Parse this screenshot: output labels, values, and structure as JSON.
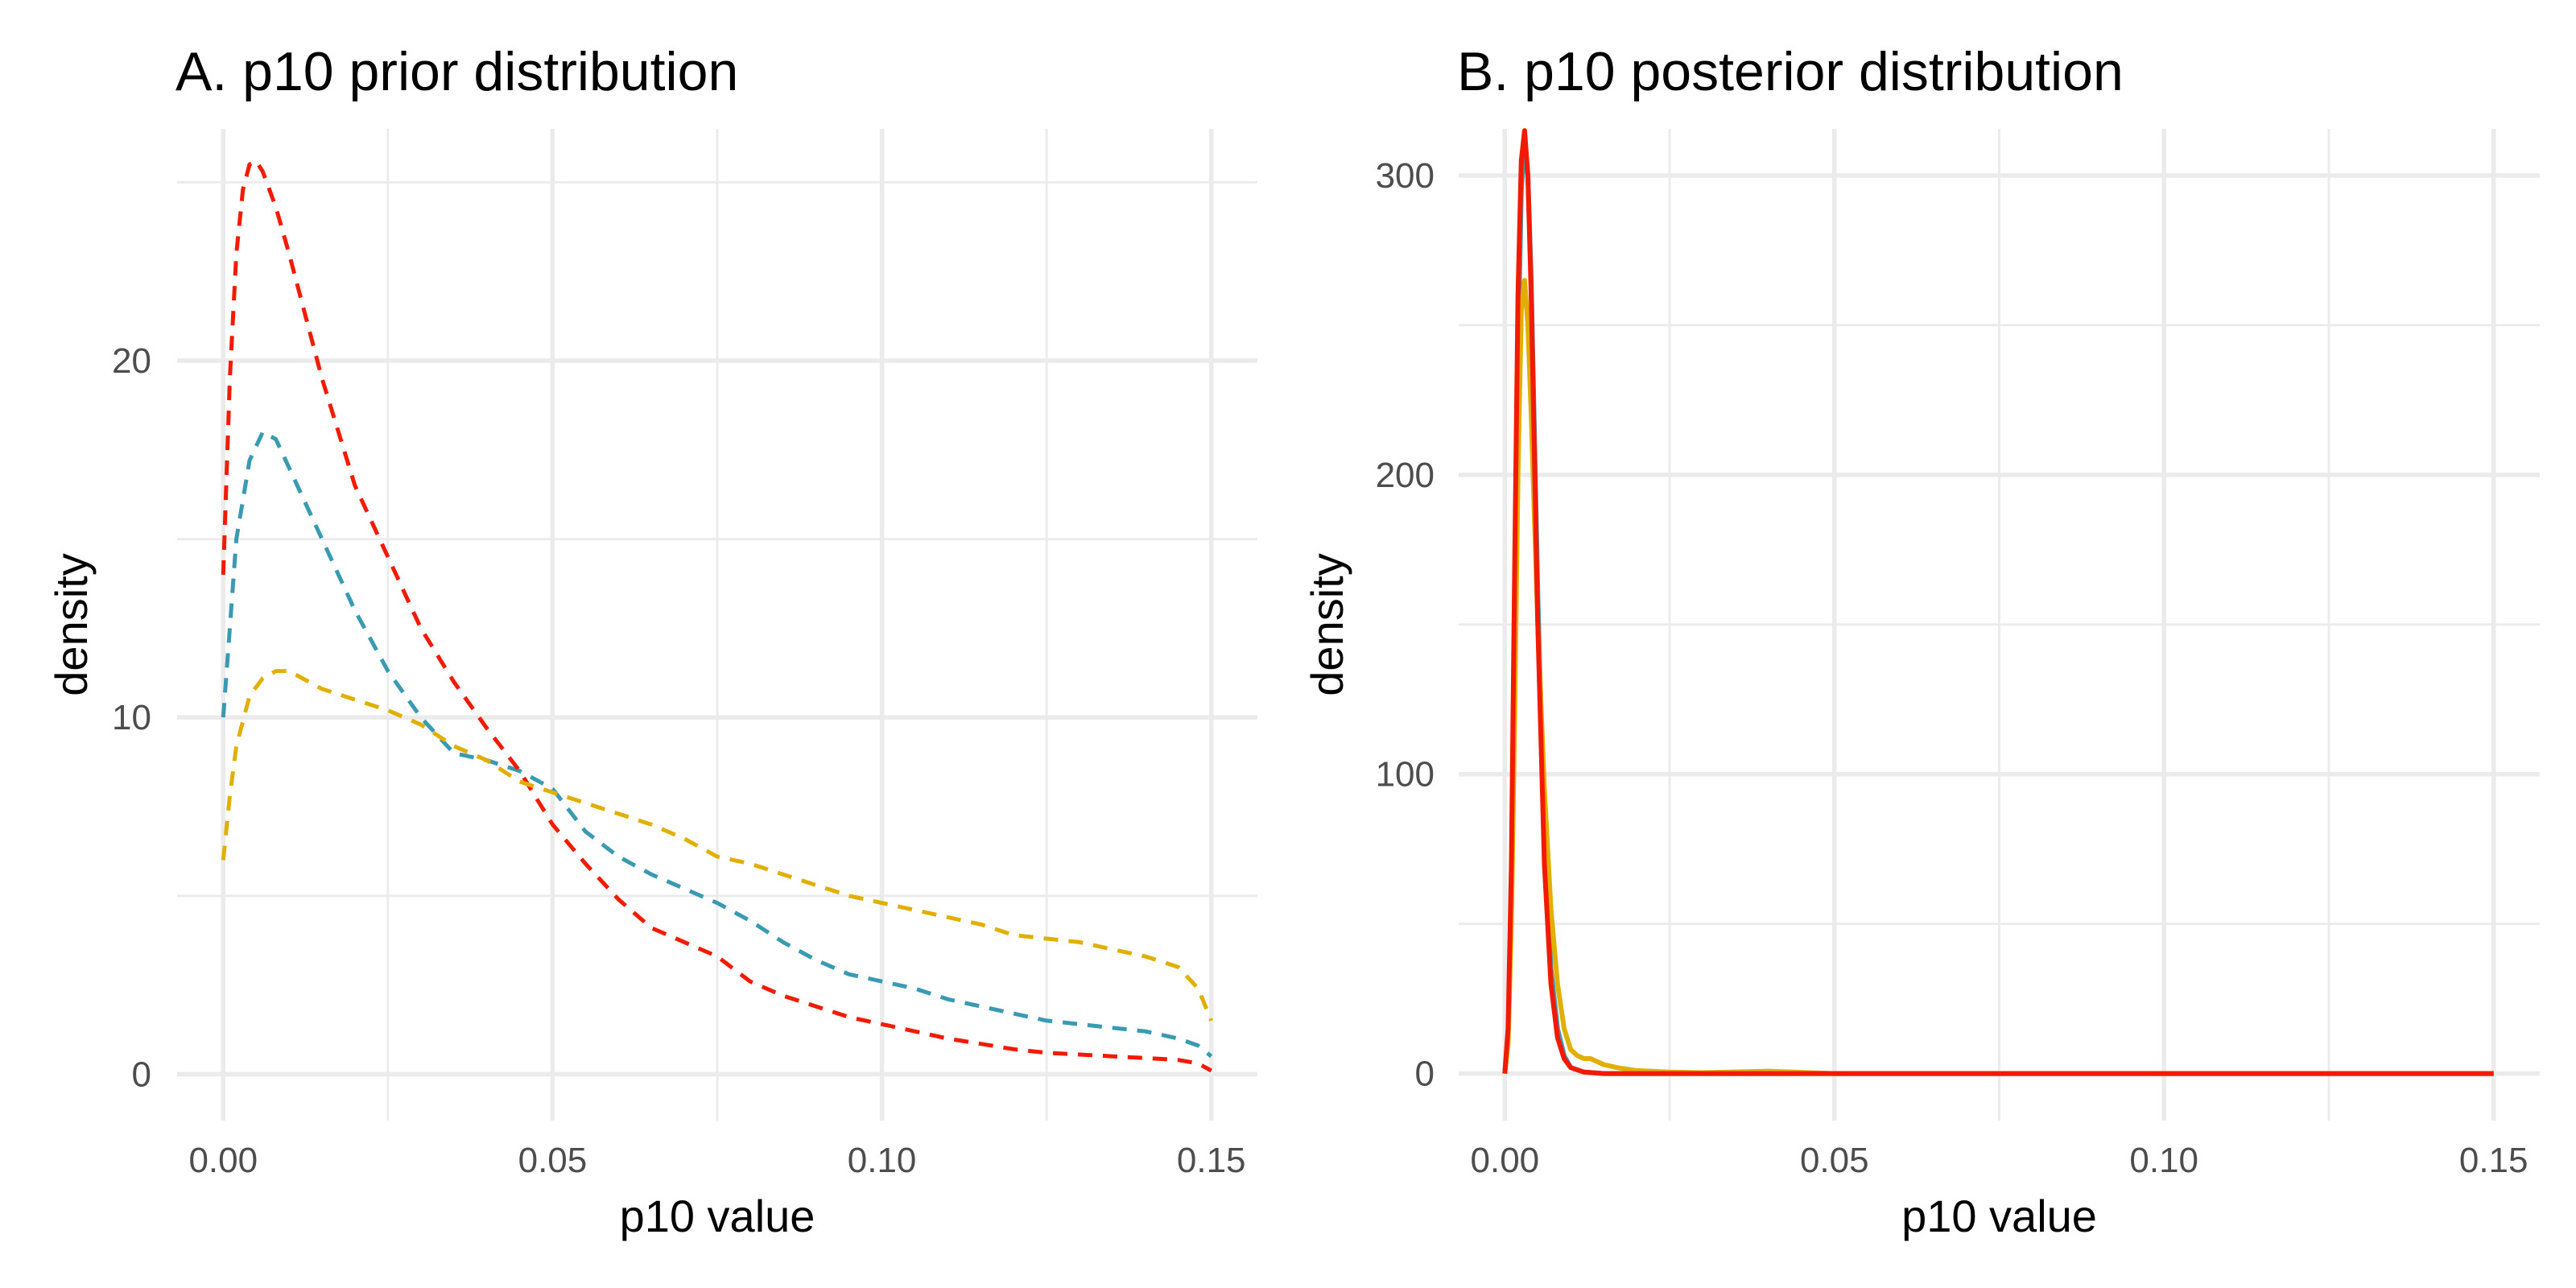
{
  "chart_data": [
    {
      "type": "line",
      "title": "A. p10 prior distribution",
      "xlabel": "p10 value",
      "ylabel": "density",
      "xlim": [
        -0.007,
        0.157
      ],
      "ylim": [
        -1.3,
        26.5
      ],
      "x_ticks": [
        0.0,
        0.05,
        0.1,
        0.15
      ],
      "x_tick_labels": [
        "0.00",
        "0.05",
        "0.10",
        "0.15"
      ],
      "y_ticks": [
        0,
        10,
        20
      ],
      "y_tick_labels": [
        "0",
        "10",
        "20"
      ],
      "grid": true,
      "line_style": "dashed",
      "series": [
        {
          "color": "#3A9AB2",
          "x": [
            0.0,
            0.001,
            0.002,
            0.004,
            0.006,
            0.008,
            0.01,
            0.015,
            0.02,
            0.025,
            0.03,
            0.035,
            0.04,
            0.045,
            0.05,
            0.055,
            0.06,
            0.065,
            0.07,
            0.075,
            0.08,
            0.085,
            0.09,
            0.095,
            0.1,
            0.105,
            0.11,
            0.115,
            0.12,
            0.125,
            0.13,
            0.135,
            0.14,
            0.145,
            0.148,
            0.15
          ],
          "y": [
            10.0,
            12.5,
            15.0,
            17.2,
            18.0,
            17.8,
            17.0,
            15.0,
            13.0,
            11.3,
            10.0,
            9.0,
            8.8,
            8.5,
            8.0,
            6.8,
            6.1,
            5.6,
            5.2,
            4.8,
            4.3,
            3.7,
            3.2,
            2.8,
            2.6,
            2.4,
            2.1,
            1.9,
            1.7,
            1.5,
            1.4,
            1.3,
            1.2,
            1.0,
            0.8,
            0.5
          ]
        },
        {
          "color": "#F21A00",
          "x": [
            0.0,
            0.001,
            0.002,
            0.003,
            0.004,
            0.005,
            0.006,
            0.008,
            0.01,
            0.015,
            0.02,
            0.025,
            0.03,
            0.035,
            0.04,
            0.045,
            0.05,
            0.055,
            0.06,
            0.065,
            0.07,
            0.075,
            0.08,
            0.085,
            0.09,
            0.095,
            0.1,
            0.105,
            0.11,
            0.115,
            0.12,
            0.125,
            0.13,
            0.135,
            0.14,
            0.145,
            0.148,
            0.15
          ],
          "y": [
            14.0,
            19.5,
            23.0,
            24.8,
            25.5,
            25.6,
            25.3,
            24.3,
            23.0,
            19.5,
            16.5,
            14.5,
            12.5,
            11.0,
            9.7,
            8.5,
            7.0,
            5.9,
            4.9,
            4.1,
            3.7,
            3.3,
            2.6,
            2.2,
            1.9,
            1.6,
            1.4,
            1.2,
            1.0,
            0.85,
            0.7,
            0.6,
            0.55,
            0.5,
            0.45,
            0.4,
            0.3,
            0.1
          ]
        },
        {
          "color": "#E1AF00",
          "x": [
            0.0,
            0.001,
            0.002,
            0.004,
            0.006,
            0.008,
            0.01,
            0.012,
            0.015,
            0.02,
            0.025,
            0.03,
            0.035,
            0.04,
            0.045,
            0.05,
            0.055,
            0.06,
            0.065,
            0.07,
            0.075,
            0.08,
            0.085,
            0.09,
            0.095,
            0.1,
            0.105,
            0.11,
            0.115,
            0.12,
            0.125,
            0.13,
            0.135,
            0.14,
            0.145,
            0.148,
            0.15
          ],
          "y": [
            6.0,
            7.8,
            9.2,
            10.6,
            11.1,
            11.3,
            11.3,
            11.1,
            10.8,
            10.5,
            10.2,
            9.8,
            9.2,
            8.8,
            8.2,
            7.9,
            7.6,
            7.3,
            7.0,
            6.6,
            6.1,
            5.9,
            5.6,
            5.3,
            5.0,
            4.8,
            4.6,
            4.4,
            4.2,
            3.9,
            3.8,
            3.7,
            3.5,
            3.3,
            3.0,
            2.4,
            1.5
          ]
        }
      ]
    },
    {
      "type": "line",
      "title": "B. p10 posterior distribution",
      "xlabel": "p10 value",
      "ylabel": "density",
      "xlim": [
        -0.007,
        0.157
      ],
      "ylim": [
        -15.7,
        315.6
      ],
      "x_ticks": [
        0.0,
        0.05,
        0.1,
        0.15
      ],
      "x_tick_labels": [
        "0.00",
        "0.05",
        "0.10",
        "0.15"
      ],
      "y_ticks": [
        0,
        100,
        200,
        300
      ],
      "y_tick_labels": [
        "0",
        "100",
        "200",
        "300"
      ],
      "grid": true,
      "line_style": "solid",
      "series": [
        {
          "color": "#3A9AB2",
          "x": [
            0.0,
            0.0005,
            0.001,
            0.0015,
            0.002,
            0.0025,
            0.003,
            0.0035,
            0.004,
            0.005,
            0.006,
            0.007,
            0.008,
            0.009,
            0.01,
            0.012,
            0.015,
            0.02,
            0.03,
            0.05,
            0.1,
            0.15
          ],
          "y": [
            0,
            12,
            60,
            150,
            240,
            295,
            310,
            300,
            265,
            160,
            80,
            35,
            15,
            6,
            2,
            0.5,
            0,
            0,
            0,
            0,
            0,
            0
          ]
        },
        {
          "color": "#E1AF00",
          "x": [
            0.0,
            0.0005,
            0.001,
            0.0015,
            0.002,
            0.0025,
            0.003,
            0.0035,
            0.004,
            0.005,
            0.006,
            0.007,
            0.008,
            0.009,
            0.01,
            0.011,
            0.012,
            0.013,
            0.015,
            0.017,
            0.02,
            0.025,
            0.03,
            0.04,
            0.05,
            0.1,
            0.15
          ],
          "y": [
            0,
            10,
            50,
            120,
            200,
            255,
            265,
            250,
            220,
            150,
            95,
            55,
            30,
            15,
            8,
            6,
            5,
            5,
            3,
            2,
            1,
            0.5,
            0.3,
            0.8,
            0,
            0,
            0
          ]
        },
        {
          "color": "#F21A00",
          "x": [
            0.0,
            0.0005,
            0.001,
            0.0015,
            0.002,
            0.0025,
            0.003,
            0.0035,
            0.004,
            0.005,
            0.006,
            0.007,
            0.008,
            0.009,
            0.01,
            0.012,
            0.015,
            0.02,
            0.03,
            0.05,
            0.1,
            0.15
          ],
          "y": [
            0,
            15,
            70,
            170,
            260,
            305,
            315,
            300,
            260,
            150,
            70,
            30,
            12,
            5,
            2,
            0.5,
            0,
            0,
            0,
            0,
            0,
            0
          ]
        }
      ]
    }
  ]
}
